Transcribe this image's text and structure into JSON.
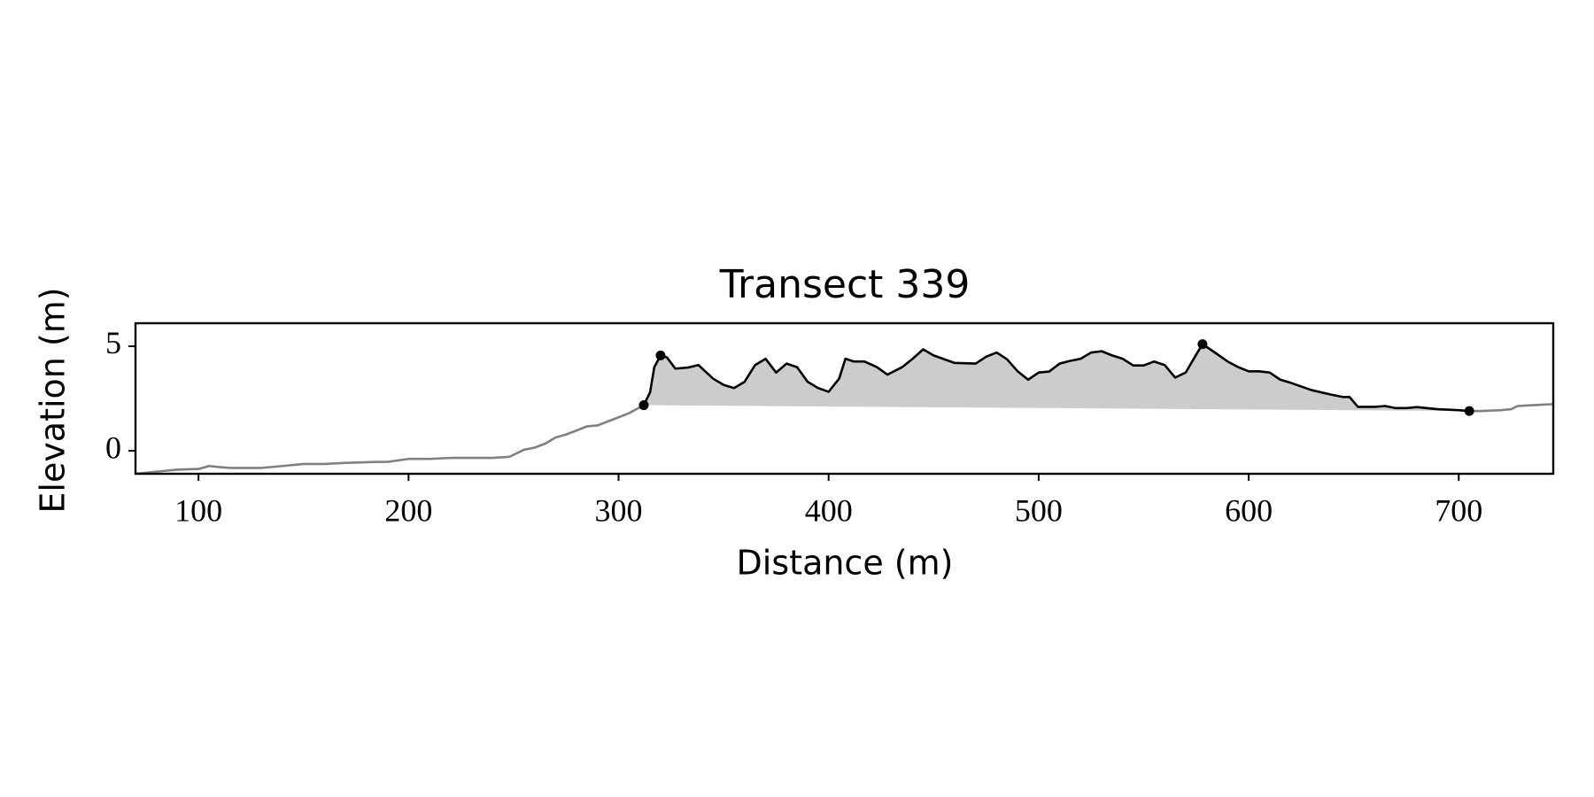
{
  "chart_data": {
    "type": "line",
    "title": "Transect 339",
    "x_label": "Distance (m)",
    "y_label": "Elevation (m)",
    "xlim": [
      70,
      745
    ],
    "ylim": [
      -1.1,
      6.1
    ],
    "xticks": [
      100,
      200,
      300,
      400,
      500,
      600,
      700
    ],
    "yticks": [
      0,
      5
    ],
    "grid": false,
    "series": [
      {
        "color": "#808080",
        "x": [
          70,
          80,
          90,
          100,
          105,
          110,
          115,
          130,
          140,
          150,
          160,
          170,
          185,
          190,
          200,
          210,
          220,
          240,
          248,
          255,
          260,
          265,
          270,
          275,
          280,
          285,
          290,
          295,
          300,
          305,
          312
        ],
        "values": [
          -1.1,
          -1.0,
          -0.9,
          -0.87,
          -0.73,
          -0.78,
          -0.82,
          -0.82,
          -0.73,
          -0.63,
          -0.63,
          -0.58,
          -0.53,
          -0.53,
          -0.39,
          -0.39,
          -0.34,
          -0.34,
          -0.29,
          0.05,
          0.15,
          0.34,
          0.63,
          0.78,
          0.97,
          1.17,
          1.21,
          1.41,
          1.6,
          1.8,
          2.18
        ]
      },
      {
        "color": "#000000",
        "fill": "#cccccc",
        "x": [
          312,
          315,
          317,
          320,
          323,
          327,
          333,
          338,
          345,
          350,
          355,
          360,
          365,
          370,
          375,
          380,
          385,
          390,
          395,
          400,
          405,
          408,
          412,
          417,
          423,
          428,
          435,
          440,
          445,
          450,
          460,
          470,
          475,
          480,
          485,
          490,
          495,
          500,
          505,
          510,
          515,
          520,
          525,
          530,
          535,
          540,
          545,
          550,
          555,
          560,
          565,
          570,
          575,
          578,
          583,
          590,
          595,
          600,
          605,
          610,
          615,
          620,
          630,
          640,
          645,
          648,
          652,
          660,
          665,
          670,
          675,
          680,
          690,
          700,
          705
        ],
        "values": [
          2.18,
          2.8,
          4.0,
          4.56,
          4.47,
          3.93,
          3.98,
          4.1,
          3.45,
          3.15,
          3.0,
          3.3,
          4.1,
          4.4,
          3.74,
          4.17,
          4.0,
          3.3,
          3.0,
          2.82,
          3.45,
          4.4,
          4.27,
          4.27,
          4.0,
          3.64,
          4.0,
          4.4,
          4.85,
          4.56,
          4.2,
          4.17,
          4.5,
          4.7,
          4.37,
          3.8,
          3.4,
          3.74,
          3.79,
          4.17,
          4.3,
          4.4,
          4.7,
          4.76,
          4.56,
          4.4,
          4.08,
          4.08,
          4.27,
          4.1,
          3.5,
          3.74,
          4.6,
          5.1,
          4.76,
          4.27,
          4.0,
          3.8,
          3.8,
          3.74,
          3.4,
          3.25,
          2.9,
          2.67,
          2.57,
          2.57,
          2.1,
          2.1,
          2.14,
          2.04,
          2.04,
          2.09,
          1.99,
          1.94,
          1.9
        ]
      },
      {
        "color": "#808080",
        "x": [
          705,
          710,
          720,
          725,
          728,
          735,
          745
        ],
        "values": [
          1.9,
          1.9,
          1.94,
          1.99,
          2.14,
          2.18,
          2.23
        ]
      }
    ],
    "markers": {
      "color": "#000000",
      "x": [
        312,
        320,
        578,
        705
      ],
      "values": [
        2.18,
        4.56,
        5.1,
        1.9
      ]
    }
  }
}
